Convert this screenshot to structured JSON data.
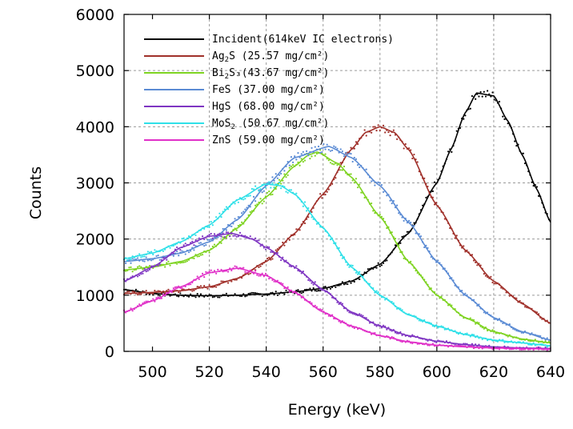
{
  "chart_data": {
    "type": "line",
    "title": "",
    "xlabel": "Energy (keV)",
    "ylabel": "Counts",
    "xlim": [
      490,
      640
    ],
    "ylim": [
      0,
      6000
    ],
    "x_ticks": [
      500,
      520,
      540,
      560,
      580,
      600,
      620,
      640
    ],
    "y_ticks": [
      0,
      1000,
      2000,
      3000,
      4000,
      5000,
      6000
    ],
    "grid": true,
    "legend_position": "top-left",
    "series": [
      {
        "legend_main": "Incident(614keV IC electrons)",
        "legend_sub": "",
        "legend_tail": "",
        "color": "#000000",
        "x": [
          490,
          500,
          510,
          520,
          530,
          540,
          550,
          560,
          570,
          580,
          590,
          600,
          605,
          610,
          614,
          620,
          625,
          630,
          635,
          640
        ],
        "y": [
          1100,
          1030,
          1000,
          990,
          1000,
          1020,
          1060,
          1120,
          1250,
          1550,
          2100,
          3000,
          3600,
          4250,
          4600,
          4550,
          4100,
          3500,
          2900,
          2300
        ]
      },
      {
        "legend_main": "Ag",
        "legend_sub": "2",
        "legend_tail": "S  (25.57 mg/cm²)",
        "color": "#a0302a",
        "x": [
          490,
          500,
          510,
          520,
          530,
          540,
          550,
          560,
          570,
          575,
          580,
          585,
          590,
          600,
          610,
          620,
          630,
          640
        ],
        "y": [
          1030,
          1050,
          1080,
          1150,
          1300,
          1600,
          2100,
          2800,
          3600,
          3900,
          4000,
          3900,
          3600,
          2600,
          1800,
          1250,
          850,
          500
        ]
      },
      {
        "legend_main": "Bi",
        "legend_sub": "2",
        "legend_tail": "S₃(43.67 mg/cm²)",
        "color": "#7ed321",
        "x": [
          490,
          500,
          510,
          520,
          530,
          540,
          550,
          555,
          558,
          565,
          570,
          580,
          590,
          600,
          610,
          620,
          630,
          640
        ],
        "y": [
          1450,
          1500,
          1600,
          1800,
          2200,
          2750,
          3300,
          3500,
          3550,
          3350,
          3100,
          2400,
          1600,
          1000,
          600,
          350,
          220,
          150
        ]
      },
      {
        "legend_main": "FeS   (37.00 mg/cm²)",
        "legend_sub": "",
        "legend_tail": "",
        "color": "#5b8bd4",
        "x": [
          490,
          500,
          510,
          520,
          530,
          540,
          550,
          562,
          570,
          580,
          590,
          600,
          610,
          620,
          630,
          640
        ],
        "y": [
          1600,
          1650,
          1750,
          1950,
          2350,
          2950,
          3450,
          3650,
          3450,
          2950,
          2300,
          1600,
          1000,
          600,
          350,
          200
        ]
      },
      {
        "legend_main": "HgS   (68.00 mg/cm²)",
        "legend_sub": "",
        "legend_tail": "",
        "color": "#7f35c2",
        "x": [
          490,
          500,
          510,
          520,
          528,
          535,
          540,
          550,
          560,
          570,
          580,
          590,
          600,
          610,
          620,
          630,
          640
        ],
        "y": [
          1250,
          1500,
          1850,
          2050,
          2100,
          2000,
          1850,
          1500,
          1100,
          700,
          450,
          280,
          180,
          120,
          80,
          60,
          50
        ]
      },
      {
        "legend_main": "MoS",
        "legend_sub": "2",
        "legend_tail": "  (50.67 mg/cm²)",
        "color": "#2fe0e8",
        "x": [
          490,
          500,
          510,
          520,
          530,
          540,
          545,
          550,
          560,
          570,
          580,
          590,
          600,
          610,
          620,
          630,
          640
        ],
        "y": [
          1650,
          1750,
          1950,
          2250,
          2700,
          2980,
          2950,
          2800,
          2200,
          1500,
          1000,
          650,
          450,
          300,
          200,
          150,
          100
        ]
      },
      {
        "legend_main": "ZnS   (59.00 mg/cm²)",
        "legend_sub": "",
        "legend_tail": "",
        "color": "#e030c8",
        "x": [
          490,
          500,
          510,
          520,
          530,
          540,
          550,
          560,
          570,
          580,
          590,
          600,
          610,
          620,
          630,
          640
        ],
        "y": [
          700,
          900,
          1150,
          1400,
          1480,
          1350,
          1050,
          700,
          450,
          280,
          170,
          110,
          80,
          60,
          50,
          40
        ]
      }
    ]
  }
}
